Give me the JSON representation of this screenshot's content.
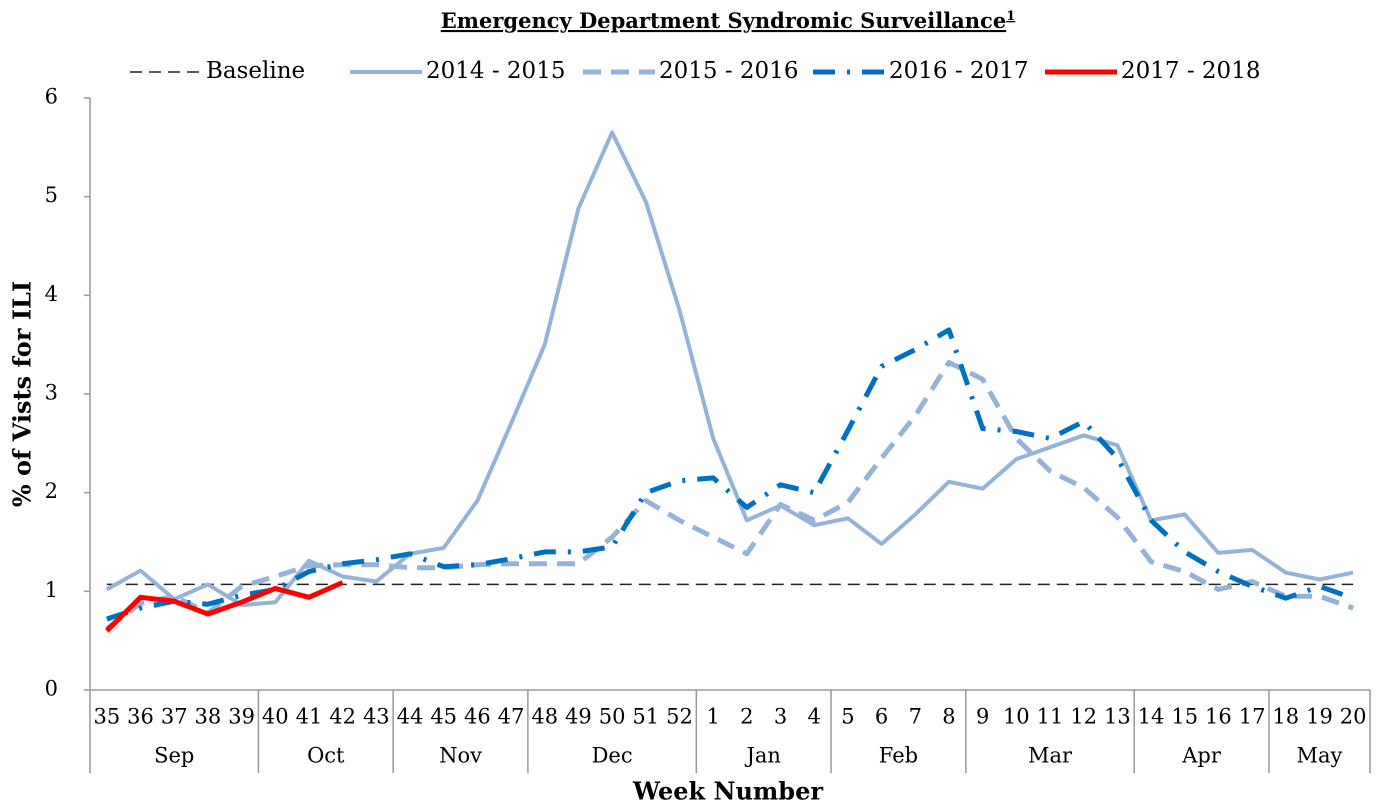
{
  "chart_data": {
    "type": "line",
    "title": "Emergency Department Syndromic Surveillance",
    "title_note": "1",
    "xlabel": "Week Number",
    "ylabel": "% of Vists for ILI",
    "categories": [
      "35",
      "36",
      "37",
      "38",
      "39",
      "40",
      "41",
      "42",
      "43",
      "44",
      "45",
      "46",
      "47",
      "48",
      "49",
      "50",
      "51",
      "52",
      "1",
      "2",
      "3",
      "4",
      "5",
      "6",
      "7",
      "8",
      "9",
      "10",
      "11",
      "12",
      "13",
      "14",
      "15",
      "16",
      "17",
      "18",
      "19",
      "20"
    ],
    "month_groups": [
      {
        "label": "Sep",
        "span": 5
      },
      {
        "label": "Oct",
        "span": 4
      },
      {
        "label": "Nov",
        "span": 4
      },
      {
        "label": "Dec",
        "span": 5
      },
      {
        "label": "Jan",
        "span": 4
      },
      {
        "label": "Feb",
        "span": 4
      },
      {
        "label": "Mar",
        "span": 5
      },
      {
        "label": "Apr",
        "span": 4
      },
      {
        "label": "May",
        "span": 3
      }
    ],
    "ylim": [
      0,
      6
    ],
    "yticks": [
      0,
      1,
      2,
      3,
      4,
      5,
      6
    ],
    "legend": "top",
    "series": [
      {
        "name": "Baseline",
        "color": "#222222",
        "dash": "dash",
        "width": 1.5,
        "values": [
          1.07,
          1.07,
          1.07,
          1.07,
          1.07,
          1.07,
          1.07,
          1.07,
          1.07,
          1.07,
          1.07,
          1.07,
          1.07,
          1.07,
          1.07,
          1.07,
          1.07,
          1.07,
          1.07,
          1.07,
          1.07,
          1.07,
          1.07,
          1.07,
          1.07,
          1.07,
          1.07,
          1.07,
          1.07,
          1.07,
          1.07,
          1.07,
          1.07,
          1.07,
          1.07,
          1.07,
          1.07,
          1.07
        ]
      },
      {
        "name": "2014 - 2015",
        "color": "#95b3d7",
        "dash": "solid",
        "width": 4,
        "values": [
          1.02,
          1.21,
          0.92,
          1.07,
          0.86,
          0.89,
          1.31,
          1.15,
          1.1,
          1.38,
          1.44,
          1.92,
          2.7,
          3.5,
          4.88,
          5.65,
          4.95,
          3.85,
          2.55,
          1.72,
          1.87,
          1.67,
          1.74,
          1.48,
          1.78,
          2.11,
          2.04,
          2.34,
          2.46,
          2.58,
          2.48,
          1.72,
          1.78,
          1.39,
          1.42,
          1.19,
          1.12,
          1.19
        ]
      },
      {
        "name": "2015 - 2016",
        "color": "#95b3d7",
        "dash": "dash",
        "width": 5,
        "values": [
          0.62,
          0.88,
          0.95,
          0.78,
          1.05,
          1.15,
          1.26,
          1.27,
          1.27,
          1.24,
          1.24,
          1.27,
          1.28,
          1.28,
          1.28,
          1.55,
          1.92,
          1.72,
          1.55,
          1.38,
          1.88,
          1.72,
          1.9,
          2.35,
          2.78,
          3.32,
          3.15,
          2.55,
          2.22,
          2.05,
          1.75,
          1.3,
          1.2,
          1.02,
          1.1,
          0.95,
          0.95,
          0.83
        ]
      },
      {
        "name": "2016 - 2017",
        "color": "#0070c0",
        "dash": "dashdot",
        "width": 5,
        "values": [
          0.72,
          0.83,
          0.9,
          0.87,
          0.96,
          1.02,
          1.2,
          1.28,
          1.32,
          1.38,
          1.25,
          1.27,
          1.33,
          1.4,
          1.4,
          1.45,
          2.0,
          2.12,
          2.15,
          1.85,
          2.08,
          2.0,
          2.63,
          3.28,
          3.45,
          3.65,
          2.65,
          2.62,
          2.55,
          2.72,
          2.35,
          1.72,
          1.4,
          1.2,
          1.05,
          0.93,
          1.05,
          0.93
        ]
      },
      {
        "name": "2017 - 2018",
        "color": "#ff0000",
        "dash": "solid",
        "width": 5,
        "values": [
          0.6,
          0.94,
          0.9,
          0.77,
          0.89,
          1.03,
          0.94,
          1.09,
          null,
          null,
          null,
          null,
          null,
          null,
          null,
          null,
          null,
          null,
          null,
          null,
          null,
          null,
          null,
          null,
          null,
          null,
          null,
          null,
          null,
          null,
          null,
          null,
          null,
          null,
          null,
          null,
          null,
          null
        ]
      }
    ]
  }
}
